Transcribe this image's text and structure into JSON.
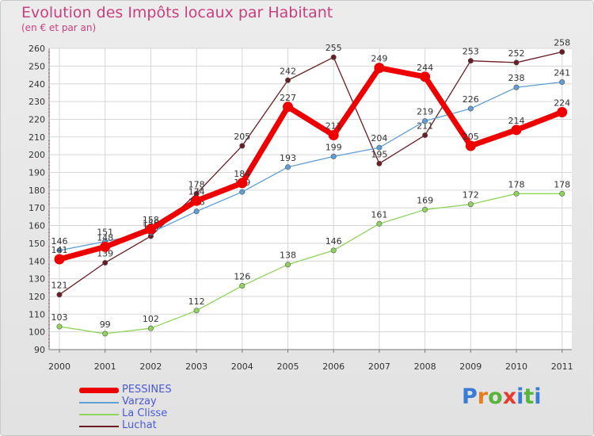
{
  "header": {
    "title": "Evolution des Impôts locaux par Habitant",
    "subtitle": "(en € et par an)"
  },
  "brand": {
    "text": "Proxiti",
    "colors": [
      "#3a7bd5",
      "#e77b1f",
      "#58b43b",
      "#e63b2e",
      "#3a7bd5",
      "#58b43b",
      "#3a7bd5"
    ]
  },
  "chart_data": {
    "type": "line",
    "title": "Evolution des Impôts locaux par Habitant",
    "subtitle": "(en € et par an)",
    "xlabel": "",
    "ylabel": "",
    "categories": [
      "2000",
      "2001",
      "2002",
      "2003",
      "2004",
      "2005",
      "2006",
      "2007",
      "2008",
      "2009",
      "2010",
      "2011"
    ],
    "yticks": [
      90,
      100,
      110,
      120,
      130,
      140,
      150,
      160,
      170,
      180,
      190,
      200,
      210,
      220,
      230,
      240,
      250,
      260
    ],
    "ylim": [
      90,
      260
    ],
    "grid": true,
    "legend_position": "bottom-left",
    "series": [
      {
        "name": "Luchat",
        "color": "#6b1c24",
        "emphasis": false,
        "values": [
          121,
          139,
          154,
          178,
          205,
          242,
          255,
          195,
          211,
          253,
          252,
          258
        ],
        "labels": [
          "121",
          "139",
          "154",
          "178",
          "205",
          "242",
          "255",
          "195",
          "211",
          "253",
          "252",
          "258"
        ]
      },
      {
        "name": "Varzay",
        "color": "#5f9ed6",
        "emphasis": false,
        "values": [
          146,
          151,
          156,
          168,
          179,
          193,
          199,
          204,
          219,
          226,
          238,
          241
        ],
        "labels": [
          "146",
          "151",
          "156",
          "168",
          "179",
          "193",
          "199",
          "204",
          "219",
          "226",
          "238",
          "241"
        ]
      },
      {
        "name": "La Clisse",
        "color": "#8ed45b",
        "emphasis": false,
        "values": [
          103,
          99,
          102,
          112,
          126,
          138,
          146,
          161,
          169,
          172,
          178,
          178
        ],
        "labels": [
          "103",
          "99",
          "102",
          "112",
          "126",
          "138",
          "146",
          "161",
          "169",
          "172",
          "178",
          "178"
        ]
      },
      {
        "name": "PESSINES",
        "color": "#ee0000",
        "emphasis": true,
        "values": [
          141,
          148,
          158,
          174,
          184,
          227,
          211,
          249,
          244,
          205,
          214,
          224
        ],
        "labels": [
          "141",
          "148",
          "158",
          "174",
          "184",
          "227",
          "211",
          "249",
          "244",
          "205",
          "214",
          "224"
        ]
      }
    ],
    "legend_order": [
      "PESSINES",
      "Varzay",
      "La Clisse",
      "Luchat"
    ]
  }
}
